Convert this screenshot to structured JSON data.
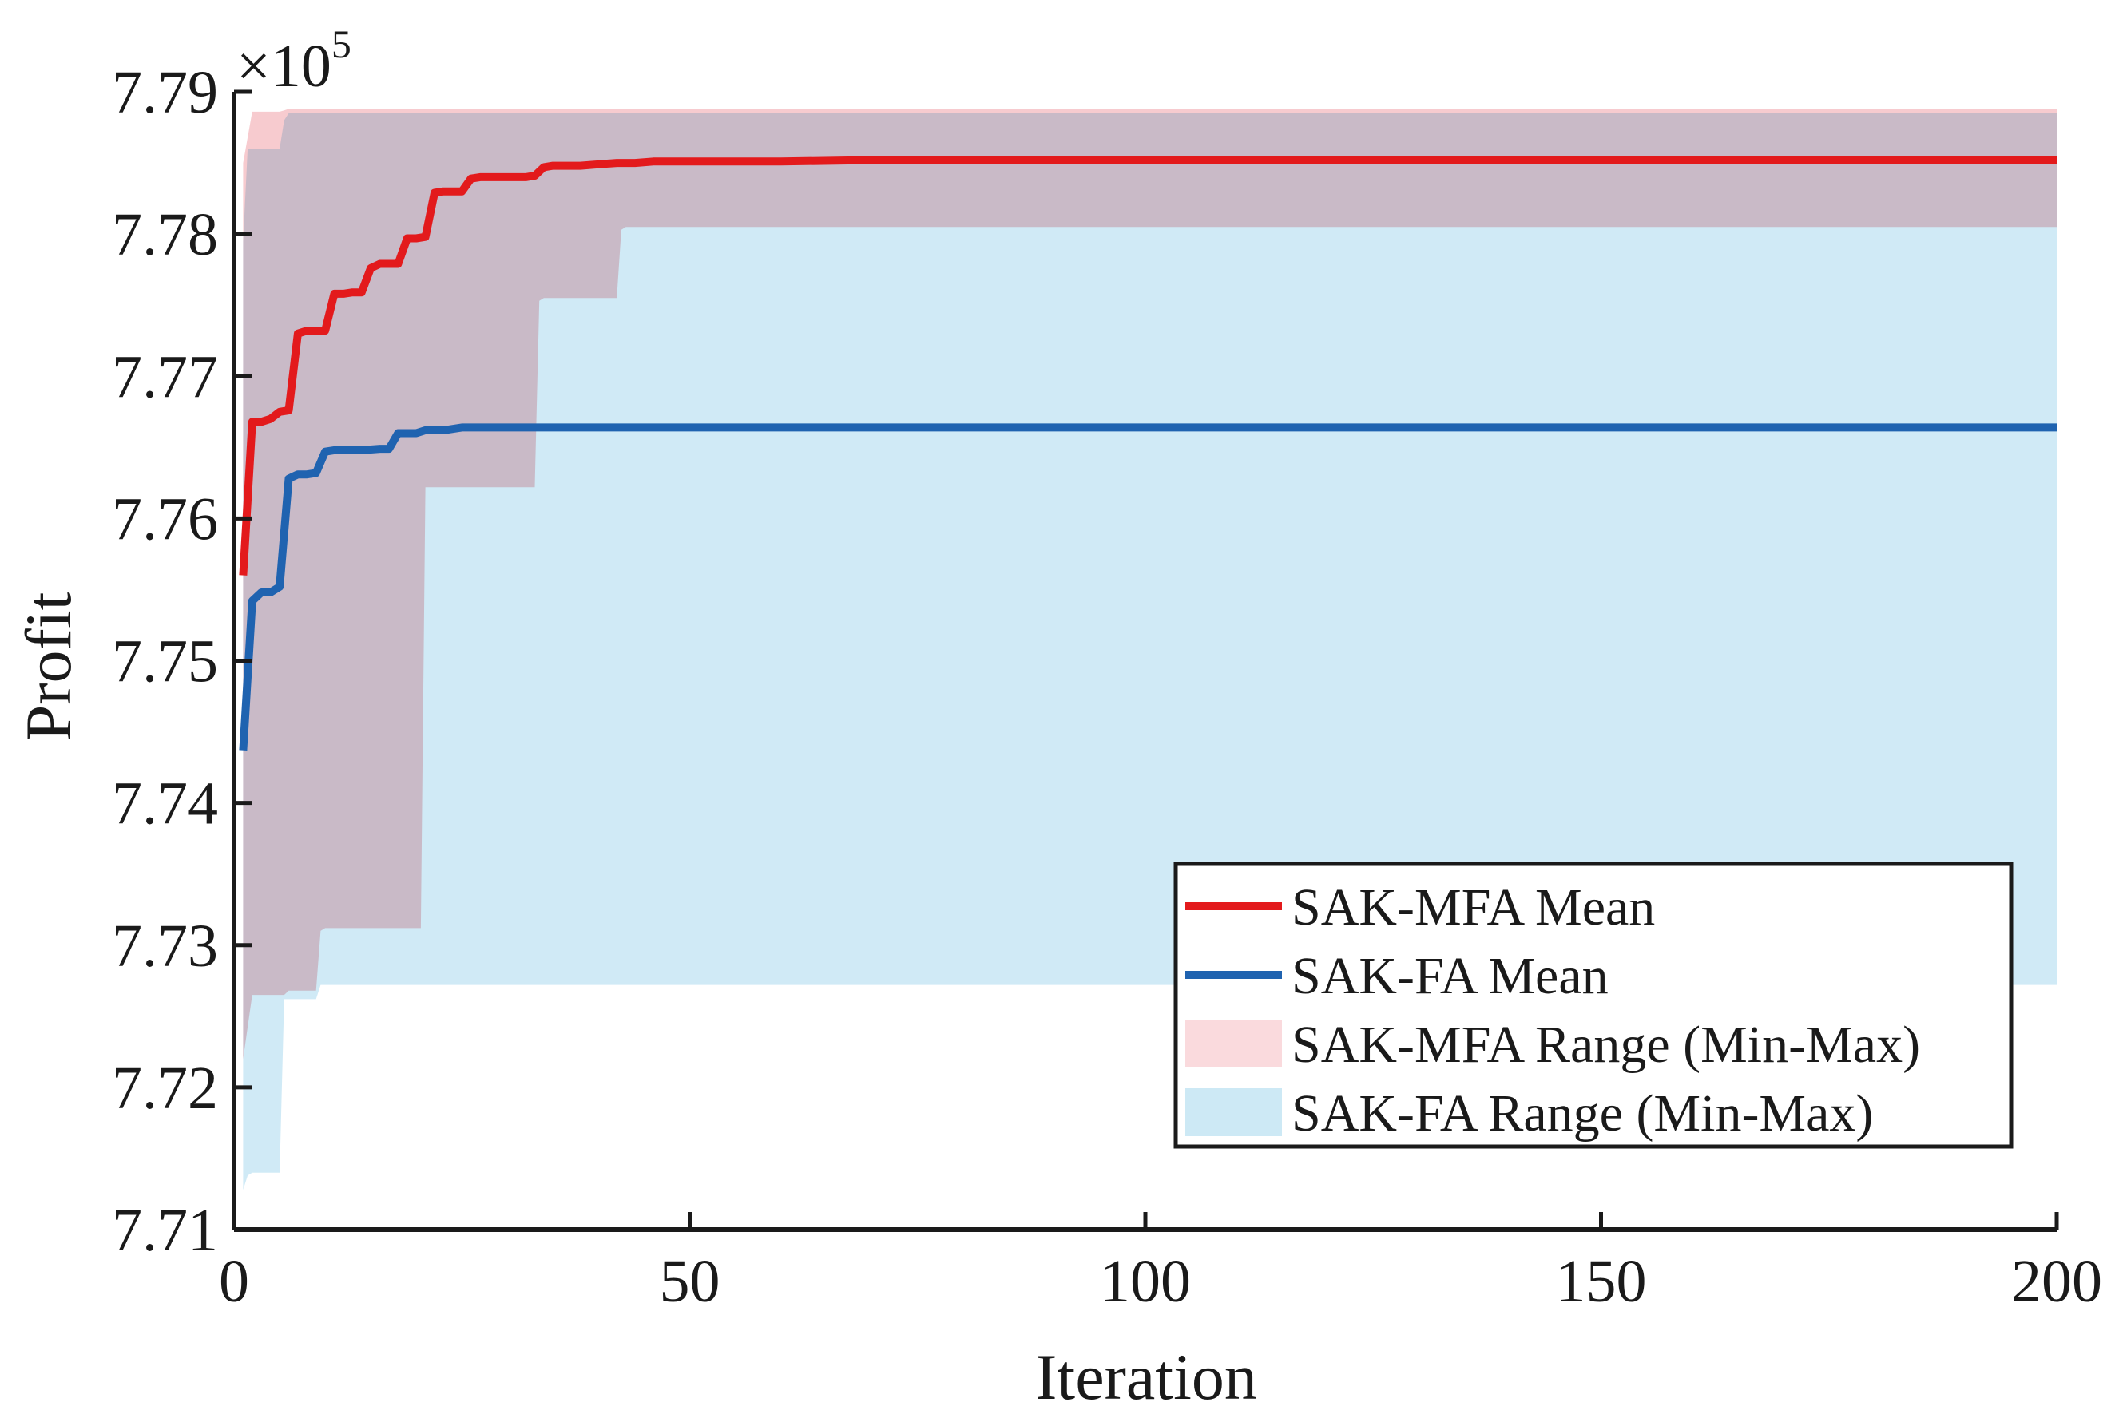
{
  "chart_data": {
    "type": "line",
    "title": "",
    "xlabel": "Iteration",
    "ylabel": "Profit",
    "xlim": [
      0,
      200
    ],
    "ylim": [
      7.71,
      7.79
    ],
    "xticks": [
      0,
      50,
      100,
      150,
      200
    ],
    "yticks": [
      7.71,
      7.72,
      7.73,
      7.74,
      7.75,
      7.76,
      7.77,
      7.78,
      7.79
    ],
    "xtick_labels": [
      "0",
      "50",
      "100",
      "150",
      "200"
    ],
    "ytick_labels": [
      "7.71",
      "7.72",
      "7.73",
      "7.74",
      "7.75",
      "7.76",
      "7.77",
      "7.78",
      "7.79"
    ],
    "y_multiplier": {
      "base": "×10",
      "exponent": "5"
    },
    "grid": false,
    "legend_position": "bottom-right",
    "series": [
      {
        "name": "SAK-MFA Mean",
        "kind": "line",
        "color": "#e31a1c",
        "x": [
          1,
          2,
          3,
          4,
          5,
          6,
          7,
          8,
          9,
          10,
          11,
          12,
          13,
          14,
          15,
          16,
          17,
          18,
          19,
          20,
          21,
          22,
          23,
          24,
          25,
          26,
          27,
          28,
          29,
          30,
          31,
          32,
          33,
          34,
          35,
          36,
          38,
          40,
          42,
          44,
          46,
          50,
          60,
          70,
          200
        ],
        "values": [
          7.756,
          7.7668,
          7.7668,
          7.767,
          7.7675,
          7.7676,
          7.773,
          7.7732,
          7.7732,
          7.7732,
          7.7758,
          7.7758,
          7.7759,
          7.7759,
          7.7776,
          7.7779,
          7.7779,
          7.7779,
          7.7797,
          7.7797,
          7.7798,
          7.7829,
          7.783,
          7.783,
          7.783,
          7.7839,
          7.784,
          7.784,
          7.784,
          7.784,
          7.784,
          7.784,
          7.7841,
          7.7847,
          7.7848,
          7.7848,
          7.7848,
          7.7849,
          7.785,
          7.785,
          7.7851,
          7.7851,
          7.7851,
          7.7852,
          7.7852
        ]
      },
      {
        "name": "SAK-FA Mean",
        "kind": "line",
        "color": "#1f63b0",
        "x": [
          1,
          2,
          3,
          4,
          5,
          6,
          7,
          8,
          9,
          10,
          11,
          12,
          14,
          16,
          17,
          18,
          19,
          20,
          21,
          22,
          23,
          25,
          26,
          27,
          200
        ],
        "values": [
          7.7437,
          7.7542,
          7.7548,
          7.7548,
          7.7552,
          7.7628,
          7.7631,
          7.7631,
          7.7632,
          7.7647,
          7.7648,
          7.7648,
          7.7648,
          7.7649,
          7.7649,
          7.766,
          7.766,
          7.766,
          7.7662,
          7.7662,
          7.7662,
          7.7664,
          7.7664,
          7.7664,
          7.7664
        ]
      },
      {
        "name": "SAK-MFA Range (Min-Max)",
        "kind": "band",
        "color": "#f7c8cc",
        "x": [
          1,
          2,
          2.5,
          3,
          5,
          5.5,
          6,
          9,
          9.5,
          10,
          20,
          20.5,
          21,
          33,
          33.5,
          34,
          42,
          42.5,
          43,
          200
        ],
        "lower": [
          7.722,
          7.7265,
          7.7265,
          7.7265,
          7.7265,
          7.7265,
          7.7268,
          7.7268,
          7.731,
          7.7312,
          7.7312,
          7.7312,
          7.7622,
          7.7622,
          7.7753,
          7.7755,
          7.7755,
          7.7803,
          7.7805,
          7.7805
        ],
        "upper": [
          7.785,
          7.7886,
          7.7886,
          7.7886,
          7.7886,
          7.7887,
          7.7888,
          7.7888,
          7.7888,
          7.7888,
          7.7888,
          7.7888,
          7.7888,
          7.7888,
          7.7888,
          7.7888,
          7.7888,
          7.7888,
          7.7888,
          7.7888
        ]
      },
      {
        "name": "SAK-FA Range (Min-Max)",
        "kind": "band",
        "color": "#cde9f5",
        "x": [
          1,
          1.5,
          2,
          5,
          5.5,
          6,
          9,
          9.5,
          10,
          20,
          20.5,
          21,
          33,
          33.5,
          34,
          42,
          42.5,
          43,
          200
        ],
        "lower": [
          7.7128,
          7.7138,
          7.714,
          7.714,
          7.7262,
          7.7262,
          7.7262,
          7.7272,
          7.7272,
          7.7272,
          7.7272,
          7.7272,
          7.7272,
          7.7272,
          7.7272,
          7.7272,
          7.7272,
          7.7272,
          7.7272
        ],
        "upper": [
          7.7795,
          7.786,
          7.786,
          7.786,
          7.788,
          7.7885,
          7.7885,
          7.7885,
          7.7885,
          7.7885,
          7.7885,
          7.7885,
          7.7885,
          7.7885,
          7.7885,
          7.7885,
          7.7885,
          7.7885,
          7.7885
        ]
      }
    ],
    "legend": [
      {
        "label": "SAK-MFA Mean",
        "kind": "line",
        "color": "#e31a1c"
      },
      {
        "label": "SAK-FA Mean",
        "kind": "line",
        "color": "#1f63b0"
      },
      {
        "label": "SAK-MFA Range (Min-Max)",
        "kind": "patch",
        "color": "#fadadd"
      },
      {
        "label": "SAK-FA Range (Min-Max)",
        "kind": "patch",
        "color": "#cde9f5"
      }
    ]
  }
}
